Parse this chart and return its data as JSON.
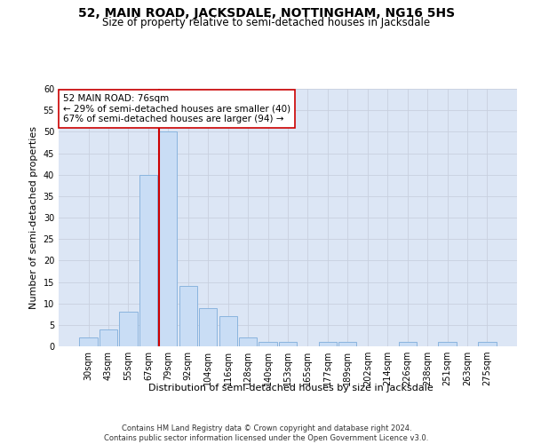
{
  "title": "52, MAIN ROAD, JACKSDALE, NOTTINGHAM, NG16 5HS",
  "subtitle": "Size of property relative to semi-detached houses in Jacksdale",
  "xlabel": "Distribution of semi-detached houses by size in Jacksdale",
  "ylabel": "Number of semi-detached properties",
  "bin_labels": [
    "30sqm",
    "43sqm",
    "55sqm",
    "67sqm",
    "79sqm",
    "92sqm",
    "104sqm",
    "116sqm",
    "128sqm",
    "140sqm",
    "153sqm",
    "165sqm",
    "177sqm",
    "189sqm",
    "202sqm",
    "214sqm",
    "226sqm",
    "238sqm",
    "251sqm",
    "263sqm",
    "275sqm"
  ],
  "bar_heights": [
    2,
    4,
    8,
    40,
    50,
    14,
    9,
    7,
    2,
    1,
    1,
    0,
    1,
    1,
    0,
    0,
    1,
    0,
    1,
    0,
    1
  ],
  "bar_color": "#c9ddf5",
  "bar_edge_color": "#8ab4de",
  "vline_color": "#cc0000",
  "annotation_text": "52 MAIN ROAD: 76sqm\n← 29% of semi-detached houses are smaller (40)\n67% of semi-detached houses are larger (94) →",
  "annotation_box_color": "white",
  "annotation_box_edge_color": "#cc0000",
  "ylim": [
    0,
    60
  ],
  "yticks": [
    0,
    5,
    10,
    15,
    20,
    25,
    30,
    35,
    40,
    45,
    50,
    55,
    60
  ],
  "grid_color": "#c8d0df",
  "bg_color": "#dce6f5",
  "footer_text": "Contains HM Land Registry data © Crown copyright and database right 2024.\nContains public sector information licensed under the Open Government Licence v3.0.",
  "title_fontsize": 10,
  "subtitle_fontsize": 8.5,
  "axis_label_fontsize": 8,
  "tick_fontsize": 7,
  "annotation_fontsize": 7.5,
  "footer_fontsize": 6
}
